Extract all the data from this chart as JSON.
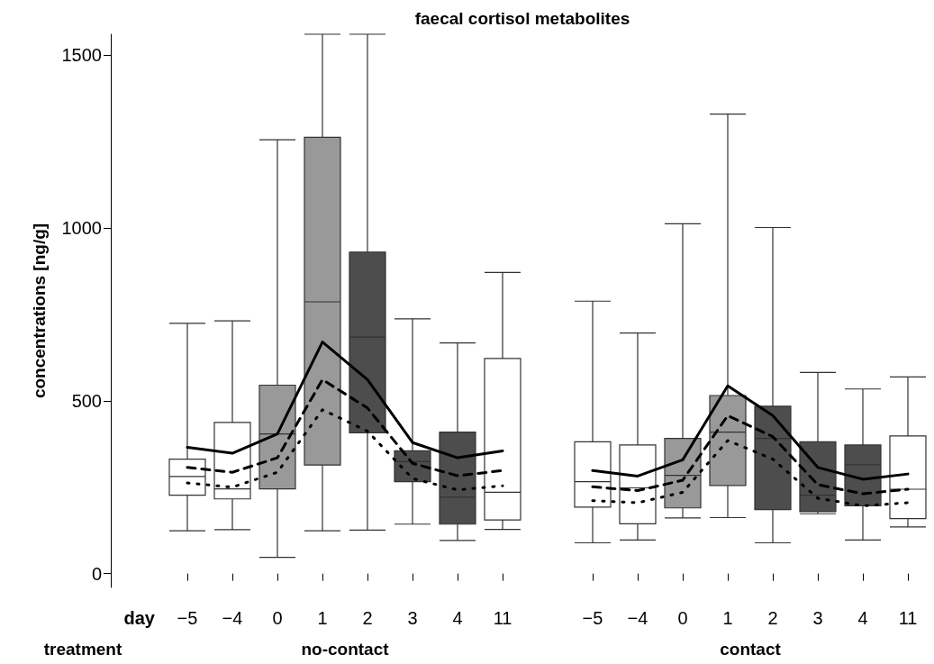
{
  "chart_data": {
    "type": "box",
    "title": "faecal cortisol metabolites",
    "xlabel": "day",
    "ylabel": "concentrations [ng/g]",
    "categories": [
      "−5",
      "−4",
      "0",
      "1",
      "2",
      "3",
      "4",
      "11",
      null,
      "−5",
      "−4",
      "0",
      "1",
      "2",
      "3",
      "4",
      "11"
    ],
    "annotations": [
      "treatment",
      "no-contact",
      "contact"
    ],
    "ylim": [
      -40,
      1560
    ],
    "yticks": [
      0,
      500,
      1000,
      1500
    ],
    "grid": false,
    "marker": "none",
    "series": [
      {
        "colors": [
          "#ffffff",
          "#ffffff",
          "#999999",
          "#999999",
          "#4d4d4d",
          "#4d4d4d",
          "#4d4d4d",
          "#ffffff",
          null,
          "#ffffff",
          "#ffffff",
          "#999999",
          "#999999",
          "#4d4d4d",
          "#4d4d4d",
          "#4d4d4d",
          "#ffffff"
        ],
        "boxes": [
          {
            "low": 124,
            "q1": 227,
            "median": 281,
            "q3": 331,
            "high": 724
          },
          {
            "low": 127,
            "q1": 216,
            "median": 245,
            "q3": 437,
            "high": 731
          },
          {
            "low": 47,
            "q1": 245,
            "median": 404,
            "q3": 545,
            "high": 1255
          },
          {
            "low": 124,
            "q1": 314,
            "median": 786,
            "q3": 1262,
            "high": 1560
          },
          {
            "low": 126,
            "q1": 407,
            "median": 684,
            "q3": 930,
            "high": 1560
          },
          {
            "low": 143,
            "q1": 266,
            "median": 324,
            "q3": 355,
            "high": 737
          },
          {
            "low": 96,
            "q1": 143,
            "median": 221,
            "q3": 409,
            "high": 667
          },
          {
            "low": 128,
            "q1": 155,
            "median": 235,
            "q3": 622,
            "high": 871
          },
          null,
          {
            "low": 89,
            "q1": 192,
            "median": 266,
            "q3": 381,
            "high": 788
          },
          {
            "low": 97,
            "q1": 144,
            "median": 248,
            "q3": 372,
            "high": 696
          },
          {
            "low": 161,
            "q1": 190,
            "median": 284,
            "q3": 391,
            "high": 1012
          },
          {
            "low": 162,
            "q1": 255,
            "median": 409,
            "q3": 515,
            "high": 1329
          },
          {
            "low": 89,
            "q1": 185,
            "median": 391,
            "q3": 484,
            "high": 1001
          },
          {
            "low": 173,
            "q1": 179,
            "median": 227,
            "q3": 381,
            "high": 582
          },
          {
            "low": 97,
            "q1": 196,
            "median": 315,
            "q3": 372,
            "high": 534
          },
          {
            "low": 135,
            "q1": 159,
            "median": 244,
            "q3": 398,
            "high": 569
          }
        ]
      },
      {
        "type": "line",
        "color": "#000000",
        "line_style": "solid",
        "values": [
          365,
          348,
          404,
          670,
          561,
          379,
          335,
          355,
          null,
          298,
          282,
          329,
          543,
          457,
          307,
          273,
          288
        ]
      },
      {
        "type": "line",
        "color": "#000000",
        "line_style": "dashed",
        "values": [
          307,
          293,
          335,
          561,
          479,
          319,
          283,
          298,
          null,
          251,
          240,
          270,
          457,
          396,
          257,
          231,
          244
        ]
      },
      {
        "type": "line",
        "color": "#000000",
        "line_style": "dotted",
        "values": [
          262,
          250,
          293,
          474,
          412,
          275,
          242,
          254,
          null,
          211,
          205,
          235,
          385,
          331,
          218,
          196,
          205
        ]
      }
    ]
  }
}
